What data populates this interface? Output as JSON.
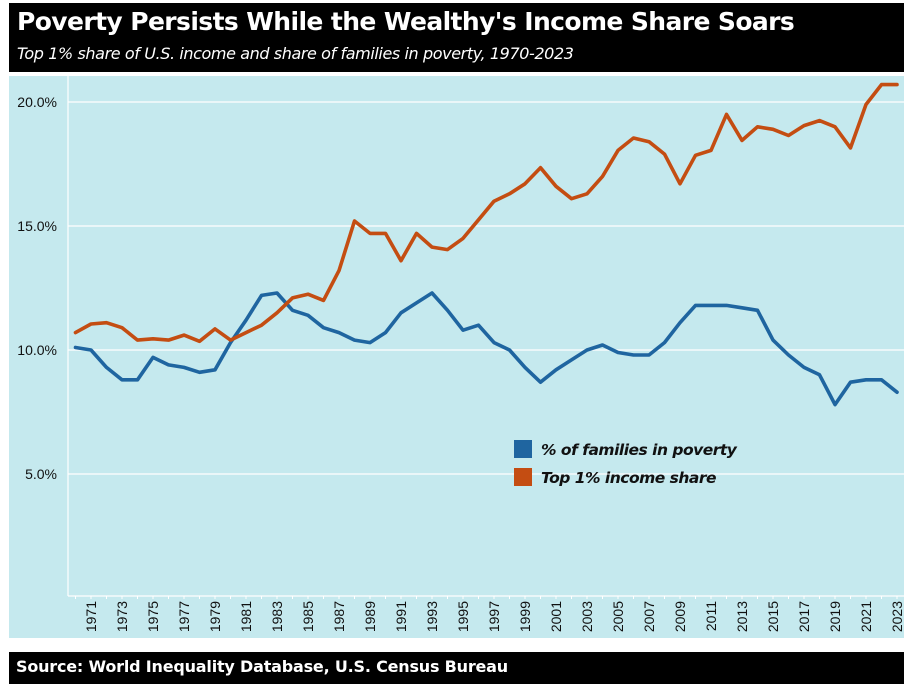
{
  "header": {
    "title": "Poverty Persists While the Wealthy's Income Share Soars",
    "subtitle": "Top 1% share of U.S. income and share of families in poverty, 1970-2023"
  },
  "footer": {
    "source": "Source: World Inequality Database, U.S. Census Bureau"
  },
  "chart_data": {
    "type": "line",
    "title": "Poverty Persists While the Wealthy's Income Share Soars",
    "subtitle": "Top 1% share of U.S. income and share of families in poverty, 1970-2023",
    "xlabel": "",
    "ylabel": "",
    "x": [
      1970,
      1971,
      1972,
      1973,
      1974,
      1975,
      1976,
      1977,
      1978,
      1979,
      1980,
      1981,
      1982,
      1983,
      1984,
      1985,
      1986,
      1987,
      1988,
      1989,
      1990,
      1991,
      1992,
      1993,
      1994,
      1995,
      1996,
      1997,
      1998,
      1999,
      2000,
      2001,
      2002,
      2003,
      2004,
      2005,
      2006,
      2007,
      2008,
      2009,
      2010,
      2011,
      2012,
      2013,
      2014,
      2015,
      2016,
      2017,
      2018,
      2019,
      2020,
      2021,
      2022,
      2023
    ],
    "xlim": [
      1970,
      2023
    ],
    "ylim": [
      0,
      21
    ],
    "yticks": [
      5,
      10,
      15,
      20
    ],
    "ytick_labels": [
      "5.0%",
      "10.0%",
      "15.0%",
      "20.0%"
    ],
    "xtick_labels": [
      "1971",
      "1973",
      "1975",
      "1977",
      "1979",
      "1981",
      "1983",
      "1985",
      "1987",
      "1989",
      "1991",
      "1993",
      "1995",
      "1997",
      "1999",
      "2001",
      "2003",
      "2005",
      "2007",
      "2009",
      "2011",
      "2013",
      "2015",
      "2017",
      "2019",
      "2021",
      "2023"
    ],
    "grid": true,
    "legend_position": "center-right",
    "series": [
      {
        "name": "% of families in poverty",
        "color": "#1f65a0",
        "values": [
          10.1,
          10.0,
          9.3,
          8.8,
          8.8,
          9.7,
          9.4,
          9.3,
          9.1,
          9.2,
          10.3,
          11.2,
          12.2,
          12.3,
          11.6,
          11.4,
          10.9,
          10.7,
          10.4,
          10.3,
          10.7,
          11.5,
          11.9,
          12.3,
          11.6,
          10.8,
          11.0,
          10.3,
          10.0,
          9.3,
          8.7,
          9.2,
          9.6,
          10.0,
          10.2,
          9.9,
          9.8,
          9.8,
          10.3,
          11.1,
          11.8,
          11.8,
          11.8,
          11.7,
          11.6,
          10.4,
          9.8,
          9.3,
          9.0,
          7.8,
          8.7,
          8.8,
          8.8,
          8.3
        ]
      },
      {
        "name": "Top 1% income share",
        "color": "#c44d12",
        "values": [
          10.7,
          11.05,
          11.1,
          10.9,
          10.4,
          10.45,
          10.4,
          10.6,
          10.35,
          10.85,
          10.4,
          10.7,
          11.0,
          11.5,
          12.1,
          12.25,
          12.0,
          13.2,
          15.2,
          14.7,
          14.7,
          13.6,
          14.7,
          14.15,
          14.05,
          14.5,
          15.25,
          16.0,
          16.3,
          16.7,
          17.35,
          16.6,
          16.1,
          16.3,
          17.0,
          18.05,
          18.55,
          18.4,
          17.9,
          16.7,
          17.85,
          18.05,
          19.5,
          18.45,
          19.0,
          18.9,
          18.65,
          19.05,
          19.25,
          19.0,
          18.15,
          19.9,
          20.7,
          20.7
        ]
      }
    ]
  }
}
